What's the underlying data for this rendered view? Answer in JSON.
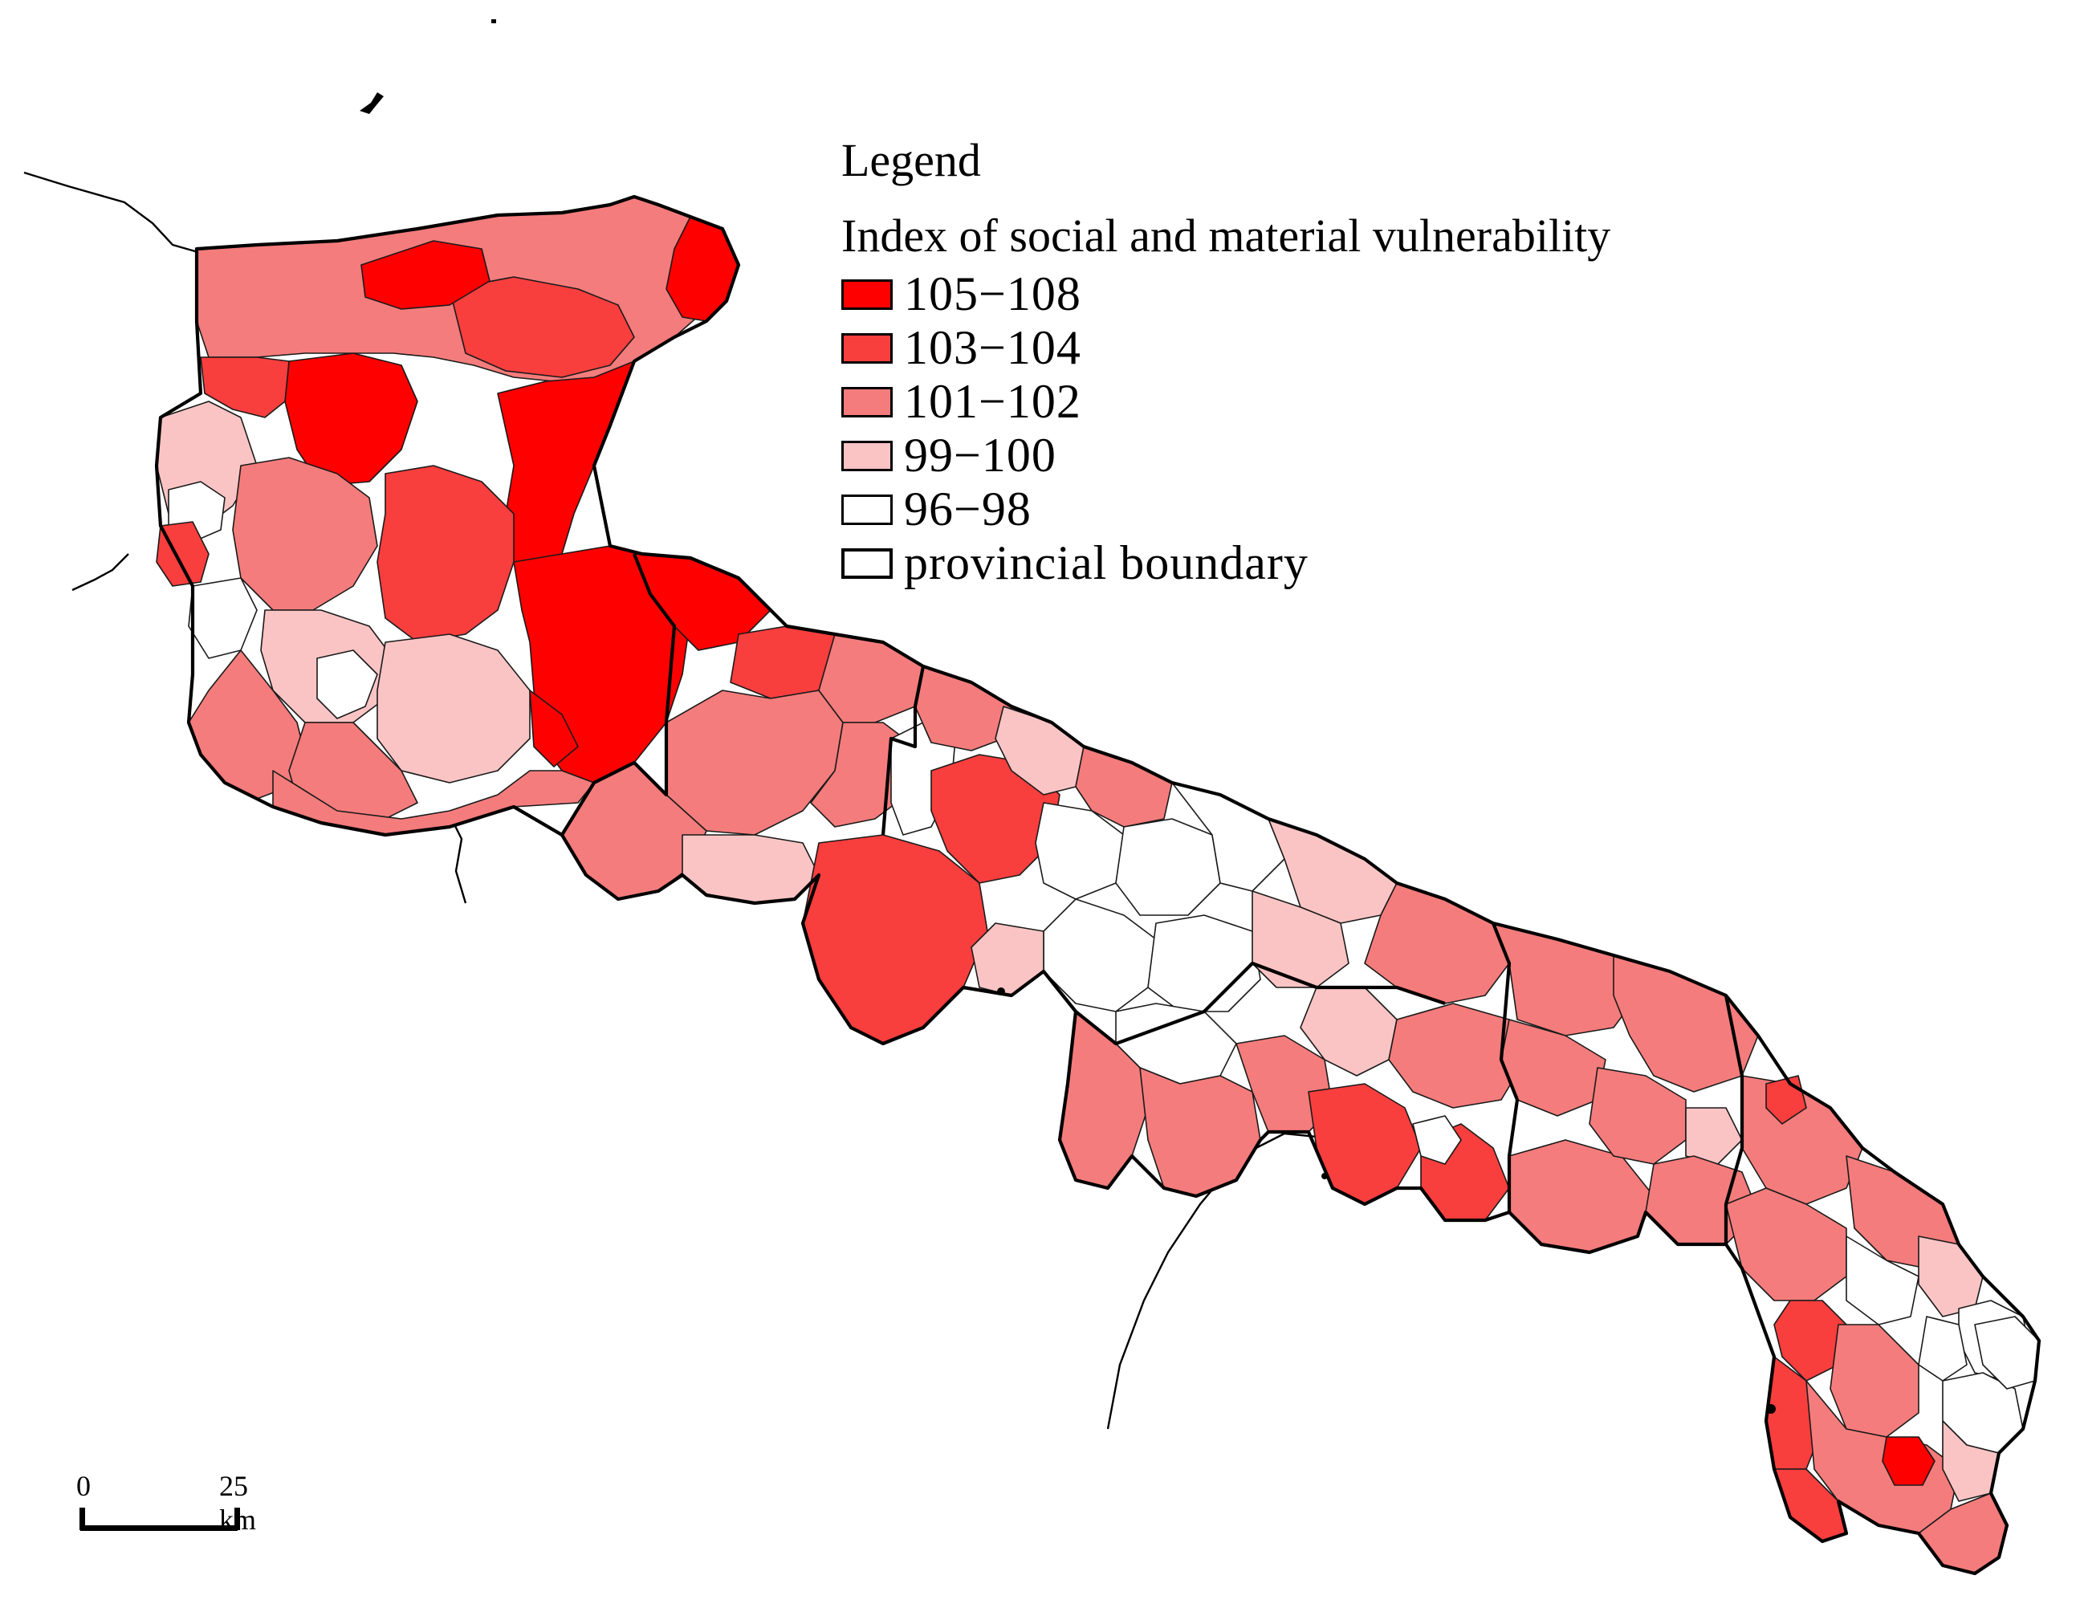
{
  "map": {
    "colors": {
      "c105_108": "#ff0000",
      "c103_104": "#f93e3e",
      "c101_102": "#f57c7c",
      "c99_100": "#fbc4c4",
      "c96_98": "#ffffff",
      "boundary": "#000000"
    }
  },
  "legend": {
    "title": "Legend",
    "subtitle": "Index of social and material vulnerability",
    "items": [
      {
        "label": "105−108",
        "color": "#ff0000"
      },
      {
        "label": "103−104",
        "color": "#f93e3e"
      },
      {
        "label": "101−102",
        "color": "#f57c7c"
      },
      {
        "label": "99−100",
        "color": "#fbc4c4"
      },
      {
        "label": "96−98",
        "color": "#ffffff"
      },
      {
        "label": "provincial boundary",
        "color": "#ffffff"
      }
    ]
  },
  "scale": {
    "zero": "0",
    "distance": "25 km"
  }
}
